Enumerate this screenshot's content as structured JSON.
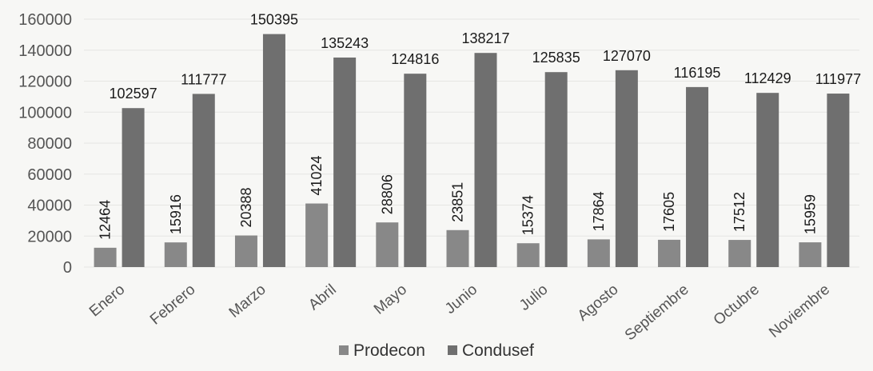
{
  "chart_data": {
    "type": "bar",
    "categories": [
      "Enero",
      "Febrero",
      "Marzo",
      "Abril",
      "Mayo",
      "Junio",
      "Julio",
      "Agosto",
      "Septiembre",
      "Octubre",
      "Noviembre"
    ],
    "series": [
      {
        "name": "Prodecon",
        "values": [
          12464,
          15916,
          20388,
          41024,
          28806,
          23851,
          15374,
          17864,
          17605,
          17512,
          15959
        ],
        "color": "#888888"
      },
      {
        "name": "Condusef",
        "values": [
          102597,
          111777,
          150395,
          135243,
          124816,
          138217,
          125835,
          127070,
          116195,
          112429,
          111977
        ],
        "color": "#6f6f6f"
      }
    ],
    "ylim": [
      0,
      160000
    ],
    "yticks": [
      0,
      20000,
      40000,
      60000,
      80000,
      100000,
      120000,
      140000,
      160000
    ],
    "grid": true,
    "legend_position": "bottom",
    "data_labels": true
  }
}
